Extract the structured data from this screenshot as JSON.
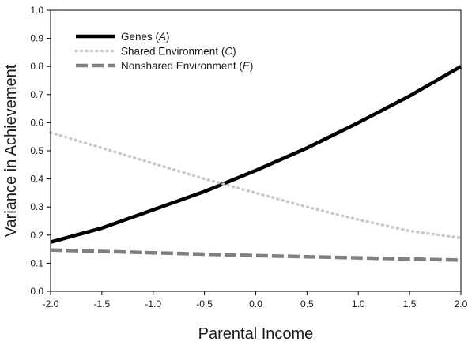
{
  "chart_data": {
    "type": "line",
    "xlabel": "Parental Income",
    "ylabel": "Variance in Achievement",
    "xlim": [
      -2.0,
      2.0
    ],
    "ylim": [
      0.0,
      1.0
    ],
    "xticks": [
      "-2.0",
      "-1.5",
      "-1.0",
      "-0.5",
      "0.0",
      "0.5",
      "1.0",
      "1.5",
      "2.0"
    ],
    "yticks": [
      "0.0",
      "0.1",
      "0.2",
      "0.3",
      "0.4",
      "0.5",
      "0.6",
      "0.7",
      "0.8",
      "0.9",
      "1.0"
    ],
    "grid": false,
    "legend_position": "top-left",
    "series": [
      {
        "name": "Genes",
        "symbol": "A",
        "style": "solid",
        "color": "#000000",
        "x": [
          -2.0,
          -1.5,
          -1.0,
          -0.5,
          0.0,
          0.5,
          1.0,
          1.5,
          2.0
        ],
        "y": [
          0.175,
          0.225,
          0.29,
          0.355,
          0.43,
          0.51,
          0.6,
          0.695,
          0.8
        ]
      },
      {
        "name": "Shared Environment",
        "symbol": "C",
        "style": "dotted",
        "color": "#c8c8c8",
        "x": [
          -2.0,
          -1.5,
          -1.0,
          -0.5,
          0.0,
          0.5,
          1.0,
          1.5,
          2.0
        ],
        "y": [
          0.565,
          0.51,
          0.455,
          0.4,
          0.35,
          0.3,
          0.255,
          0.215,
          0.19
        ]
      },
      {
        "name": "Nonshared Environment",
        "symbol": "E",
        "style": "dashed",
        "color": "#808080",
        "x": [
          -2.0,
          -1.5,
          -1.0,
          -0.5,
          0.0,
          0.5,
          1.0,
          1.5,
          2.0
        ],
        "y": [
          0.147,
          0.142,
          0.137,
          0.132,
          0.127,
          0.123,
          0.119,
          0.115,
          0.111
        ]
      }
    ]
  }
}
